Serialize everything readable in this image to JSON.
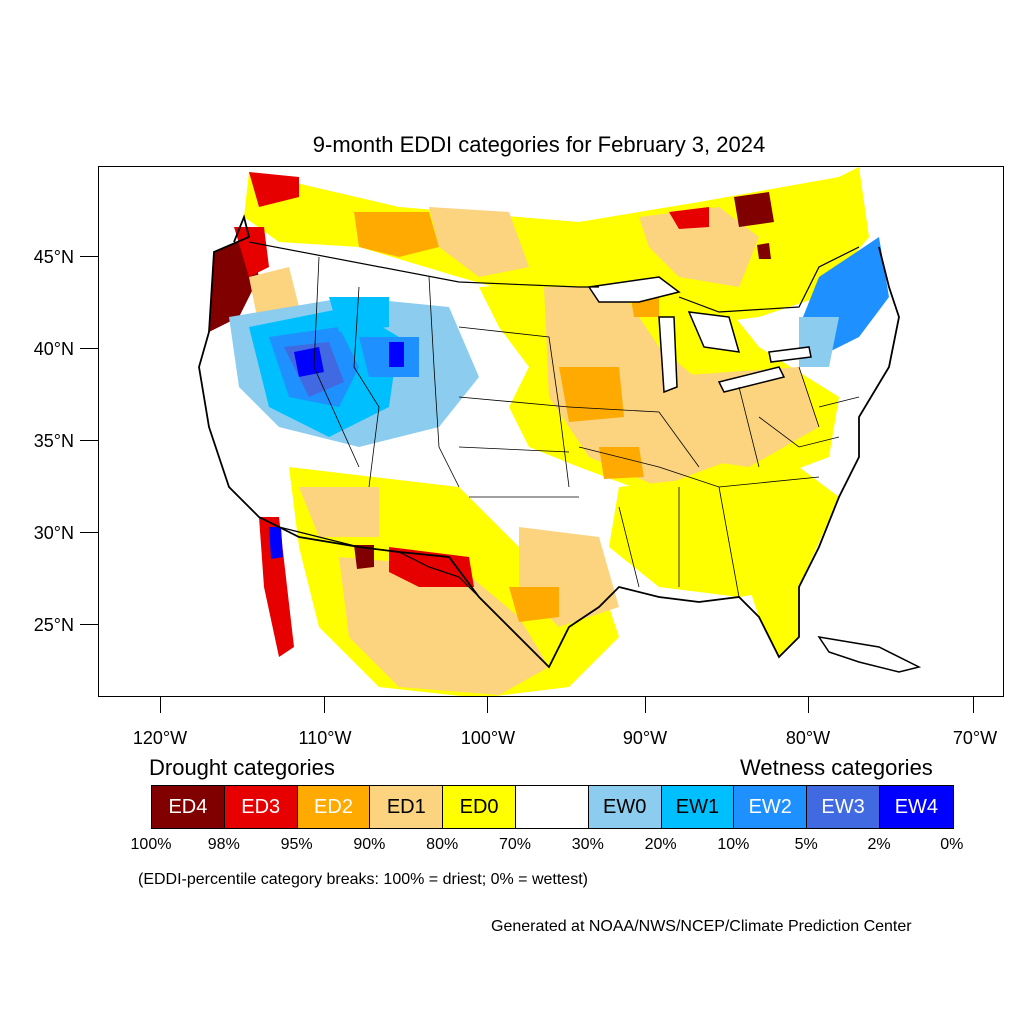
{
  "title": "9-month EDDI categories for February 3, 2024",
  "map": {
    "lat_labels": [
      "45°N",
      "40°N",
      "35°N",
      "30°N",
      "25°N"
    ],
    "lon_labels": [
      "120°W",
      "110°W",
      "100°W",
      "90°W",
      "80°W",
      "70°W"
    ],
    "category_colors": {
      "ED4": "#800000",
      "ED3": "#e60000",
      "ED2": "#ffaa00",
      "ED1": "#fcd37f",
      "ED0": "#ffff00",
      "neutral": "#ffffff",
      "EW0": "#8ccdef",
      "EW1": "#00bfff",
      "EW2": "#1e90ff",
      "EW3": "#4169e1",
      "EW4": "#0000ff"
    }
  },
  "legend": {
    "drought_title": "Drought categories",
    "wetness_title": "Wetness categories",
    "categories": [
      {
        "label": "ED4",
        "color": "#800000",
        "text_color": "#ffffff"
      },
      {
        "label": "ED3",
        "color": "#e60000",
        "text_color": "#ffffff"
      },
      {
        "label": "ED2",
        "color": "#ffaa00",
        "text_color": "#ffffff"
      },
      {
        "label": "ED1",
        "color": "#fcd37f",
        "text_color": "#000000"
      },
      {
        "label": "ED0",
        "color": "#ffff00",
        "text_color": "#000000"
      },
      {
        "label": "",
        "color": "#ffffff",
        "text_color": "#000000"
      },
      {
        "label": "EW0",
        "color": "#8ccdef",
        "text_color": "#000000"
      },
      {
        "label": "EW1",
        "color": "#00bfff",
        "text_color": "#000000"
      },
      {
        "label": "EW2",
        "color": "#1e90ff",
        "text_color": "#ffffff"
      },
      {
        "label": "EW3",
        "color": "#4169e1",
        "text_color": "#ffffff"
      },
      {
        "label": "EW4",
        "color": "#0000ff",
        "text_color": "#ffffff"
      }
    ],
    "breaks": [
      "100%",
      "98%",
      "95%",
      "90%",
      "80%",
      "70%",
      "30%",
      "20%",
      "10%",
      "5%",
      "2%",
      "0%"
    ]
  },
  "note": "(EDDI-percentile category breaks: 100% = driest; 0% = wettest)",
  "credit": "Generated at NOAA/NWS/NCEP/Climate Prediction Center"
}
